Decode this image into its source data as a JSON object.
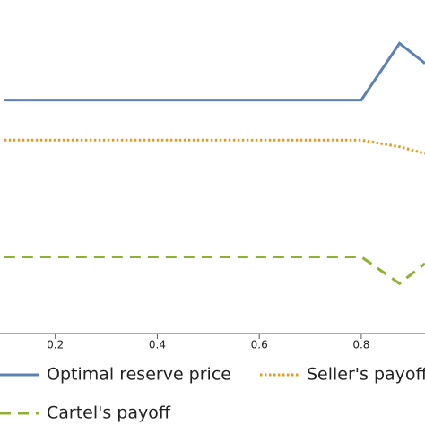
{
  "chart_data": {
    "type": "line",
    "x": [
      0.1,
      0.2,
      0.3,
      0.4,
      0.5,
      0.6,
      0.7,
      0.8,
      0.875,
      0.925
    ],
    "series": [
      {
        "name": "Optimal reserve price",
        "color": "#5e81b5",
        "dash": "solid",
        "values": [
          0.7,
          0.7,
          0.7,
          0.7,
          0.7,
          0.7,
          0.7,
          0.7,
          0.87,
          0.81
        ]
      },
      {
        "name": "Seller's payoff",
        "color": "#e19c24",
        "dash": "dotted",
        "values": [
          0.58,
          0.58,
          0.58,
          0.58,
          0.58,
          0.58,
          0.58,
          0.58,
          0.56,
          0.54
        ]
      },
      {
        "name": "Cartel's payoff",
        "color": "#8fb032",
        "dash": "dashed",
        "values": [
          0.23,
          0.23,
          0.23,
          0.23,
          0.23,
          0.23,
          0.23,
          0.23,
          0.15,
          0.21
        ]
      }
    ],
    "xlim": [
      0.0915,
      0.925
    ],
    "ylim": [
      0,
      1
    ],
    "xticks": [
      0.2,
      0.4,
      0.6,
      0.8
    ]
  }
}
